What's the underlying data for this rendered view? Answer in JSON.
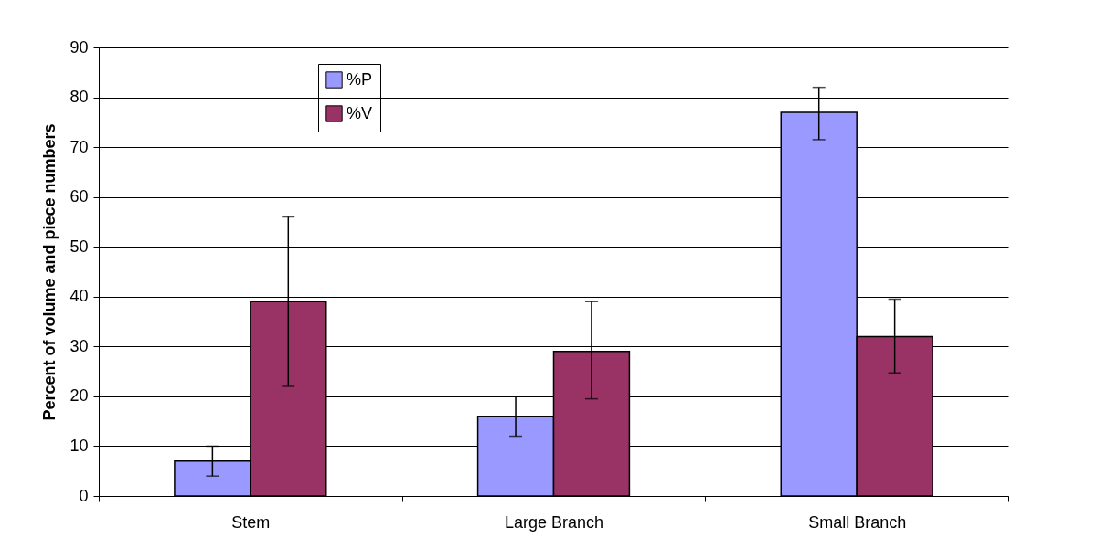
{
  "chart_data": {
    "type": "bar",
    "ylabel": "Percent of volume and piece numbers",
    "categories": [
      "Stem",
      "Large Branch",
      "Small Branch"
    ],
    "series": [
      {
        "name": "%P",
        "color": "#9999ff",
        "values": [
          7,
          16,
          77
        ],
        "errors": [
          [
            4,
            10
          ],
          [
            12,
            20
          ],
          [
            71.5,
            82
          ]
        ]
      },
      {
        "name": "%V",
        "color": "#993366",
        "values": [
          39,
          29,
          32
        ],
        "errors": [
          [
            22,
            56
          ],
          [
            19.5,
            39
          ],
          [
            24.7,
            39.5
          ]
        ]
      }
    ],
    "ylim": [
      0,
      90
    ],
    "yticks": [
      0,
      10,
      20,
      30,
      40,
      50,
      60,
      70,
      80,
      90
    ],
    "grid": "y",
    "legend": "top left"
  }
}
